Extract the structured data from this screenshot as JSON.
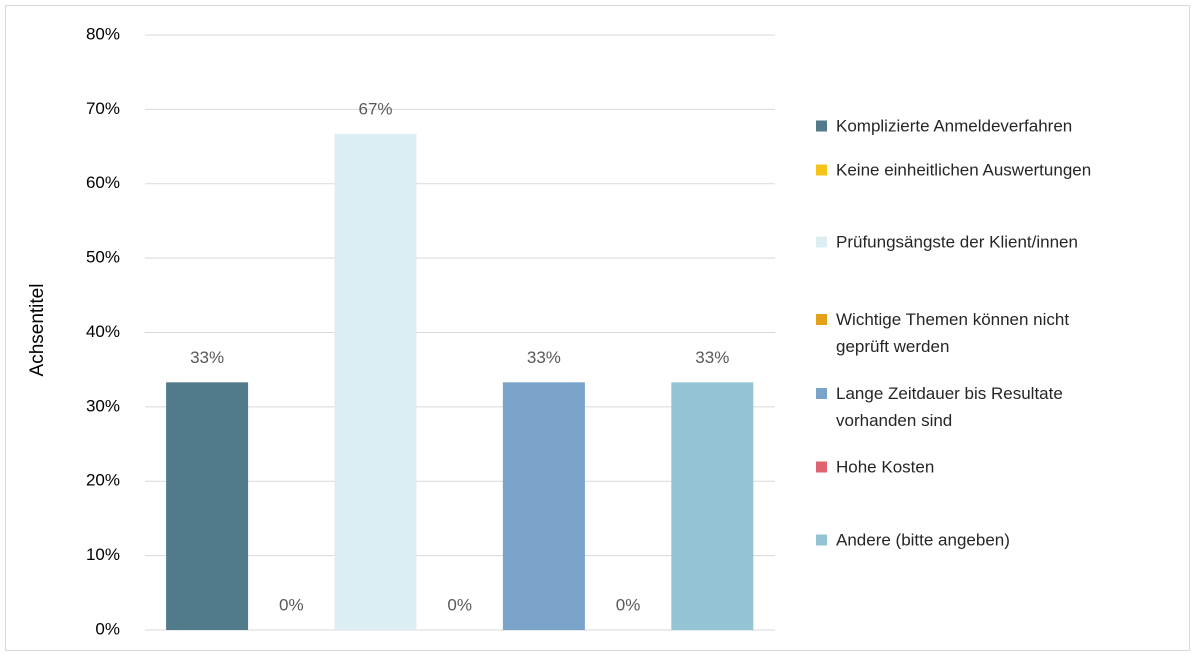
{
  "chart_data": {
    "type": "bar",
    "y_label": "Achsentitel",
    "ylim": [
      0,
      80
    ],
    "yticks": [
      {
        "value": 0,
        "label": "0%"
      },
      {
        "value": 10,
        "label": "10%"
      },
      {
        "value": 20,
        "label": "20%"
      },
      {
        "value": 30,
        "label": "30%"
      },
      {
        "value": 40,
        "label": "40%"
      },
      {
        "value": 50,
        "label": "50%"
      },
      {
        "value": 60,
        "label": "60%"
      },
      {
        "value": 70,
        "label": "70%"
      },
      {
        "value": 80,
        "label": "80%"
      }
    ],
    "grid": true,
    "legend": "right",
    "series": [
      {
        "name": "Komplizierte Anmeldeverfahren",
        "color": "#517a8a",
        "values": [
          33.3
        ],
        "value_labels": [
          "33%"
        ]
      },
      {
        "name": "Keine einheitlichen Auswertungen",
        "color": "#f5c31a",
        "values": [
          0
        ],
        "value_labels": [
          "0%"
        ]
      },
      {
        "name": "Prüfungsängste der Klient/innen",
        "color": "#ddeef3",
        "values": [
          66.7
        ],
        "value_labels": [
          "67%"
        ]
      },
      {
        "name": "Wichtige Themen können nicht geprüft werden",
        "color": "#e3a11a",
        "values": [
          0
        ],
        "value_labels": [
          "0%"
        ]
      },
      {
        "name": "Lange Zeitdauer bis Resultate vorhanden sind",
        "color": "#79a3c9",
        "values": [
          33.3
        ],
        "value_labels": [
          "33%"
        ]
      },
      {
        "name": "Hohe Kosten",
        "color": "#e06470",
        "values": [
          0
        ],
        "value_labels": [
          "0%"
        ]
      },
      {
        "name": "Andere (bitte angeben)",
        "color": "#94c4d3",
        "values": [
          33.3
        ],
        "value_labels": [
          "33%"
        ]
      }
    ]
  }
}
